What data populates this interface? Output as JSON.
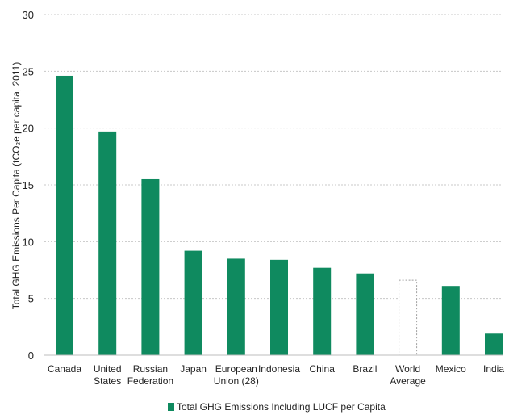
{
  "chart_data": {
    "type": "bar",
    "title": "",
    "xlabel": "",
    "ylabel": "Total GHG Emissions Per Capita (tCO₂e per capita, 2011)",
    "ylim": [
      0,
      30
    ],
    "yticks": [
      0,
      5,
      10,
      15,
      20,
      25,
      30
    ],
    "grid": true,
    "legend_position": "bottom-center",
    "categories": [
      [
        "Canada"
      ],
      [
        "United",
        "States"
      ],
      [
        "Russian",
        "Federation"
      ],
      [
        "Japan"
      ],
      [
        "European",
        "Union (28)"
      ],
      [
        "Indonesia"
      ],
      [
        "China"
      ],
      [
        "Brazil"
      ],
      [
        "World",
        "Average"
      ],
      [
        "Mexico"
      ],
      [
        "India"
      ]
    ],
    "series": [
      {
        "name": "Total GHG Emissions Including LUCF per Capita",
        "color": "#0f8a5f",
        "values": [
          24.6,
          19.7,
          15.5,
          9.2,
          8.5,
          8.4,
          7.7,
          7.2,
          6.6,
          6.1,
          1.9
        ],
        "dashed_categories": [
          "World Average"
        ]
      }
    ]
  }
}
